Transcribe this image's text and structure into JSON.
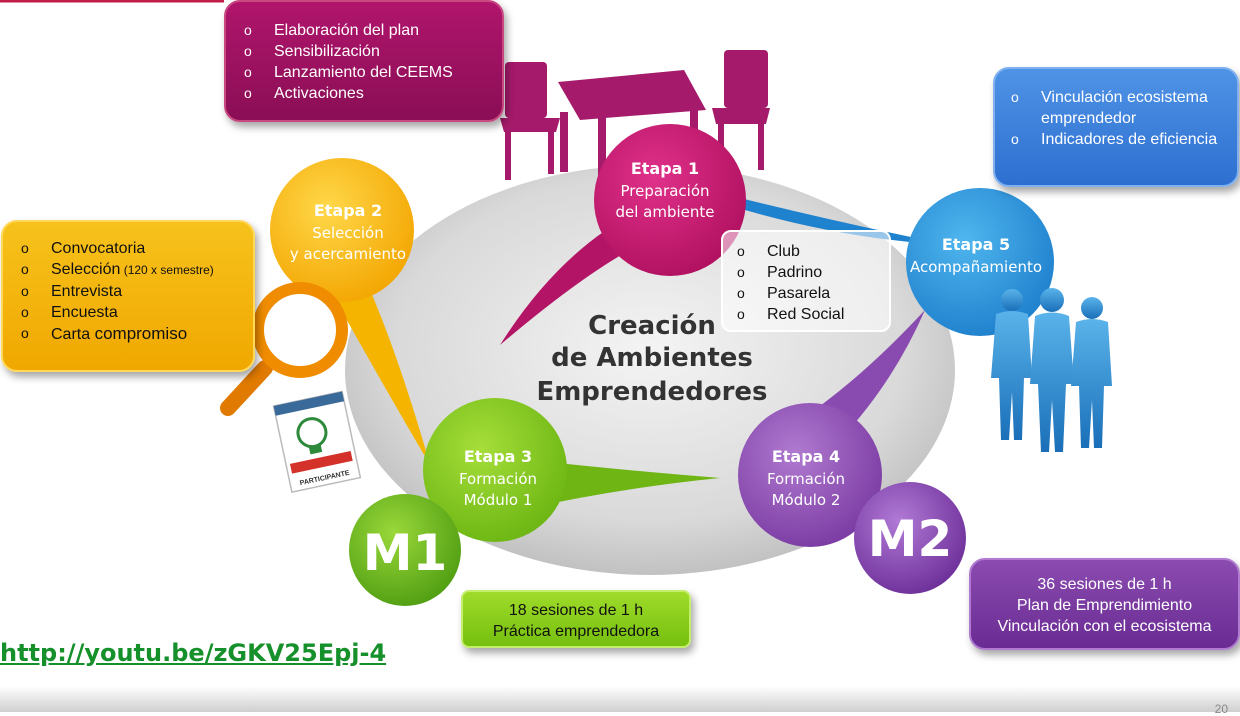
{
  "center": {
    "title_lines": [
      "Creación",
      "de Ambientes",
      "Emprendedores"
    ]
  },
  "stages": [
    {
      "id": "etapa1",
      "lines": [
        "Etapa 1",
        "Preparación",
        "del ambiente"
      ],
      "color": "#c5156f"
    },
    {
      "id": "etapa2",
      "lines": [
        "Etapa 2",
        "Selección",
        "y acercamiento"
      ],
      "color": "#f6b20f"
    },
    {
      "id": "etapa3",
      "lines": [
        "Etapa 3",
        "Formación",
        "Módulo 1"
      ],
      "color": "#7cc520"
    },
    {
      "id": "etapa4",
      "lines": [
        "Etapa 4",
        "Formación",
        "Módulo 2"
      ],
      "color": "#8a4bb0"
    },
    {
      "id": "etapa5",
      "lines": [
        "Etapa 5",
        "Acompañamiento"
      ],
      "color": "#2c8fd8"
    }
  ],
  "modules": {
    "m1": "M1",
    "m2": "M2"
  },
  "boxes": {
    "etapa1": [
      "Elaboración del plan",
      "Sensibilización",
      "Lanzamiento del CEEMS",
      "Activaciones"
    ],
    "etapa5": [
      "Vinculación ecosistema emprendedor",
      " Indicadores de eficiencia"
    ],
    "etapa2": {
      "item1": "Convocatoria",
      "item2_main": "Selección",
      "item2_small": " (120 x semestre)",
      "item3": "Entrevista",
      "item4": "Encuesta",
      "item5_main": "Carta ",
      "item5_tail": "compromiso"
    },
    "club": [
      "Club",
      "Padrino",
      "Pasarela",
      "Red Social"
    ],
    "m1": [
      "18 sesiones de 1 h",
      "Práctica emprendedora"
    ],
    "m2": [
      "36 sesiones de 1 h",
      "Plan de Emprendimiento",
      "Vinculación con el ecosistema"
    ]
  },
  "link": "http://youtu.be/zGKV25Epj-4",
  "badge": {
    "text": "PARTICIPANTE"
  },
  "page_number": "20"
}
